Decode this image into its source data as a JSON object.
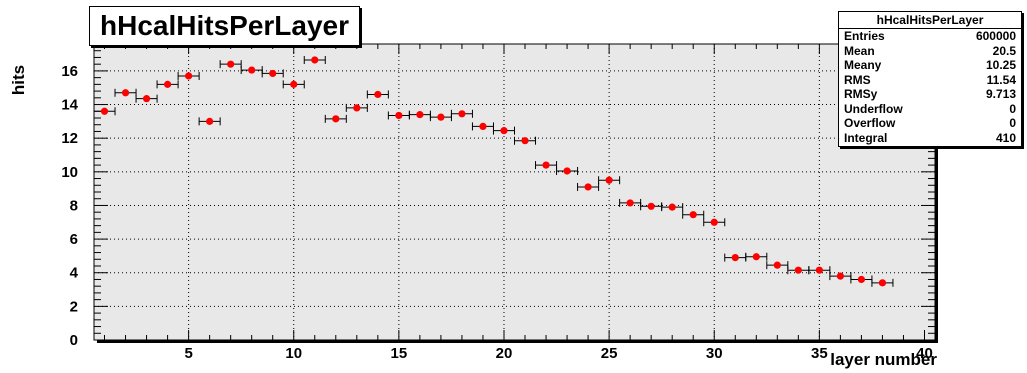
{
  "chart_data": {
    "type": "scatter",
    "title": "hHcalHitsPerLayer",
    "xlabel": "layer number",
    "ylabel": "hits",
    "xlim": [
      0.5,
      40.5
    ],
    "ylim": [
      0,
      17.6
    ],
    "x_ticks": [
      5,
      10,
      15,
      20,
      25,
      30,
      35,
      40
    ],
    "y_ticks": [
      0,
      2,
      4,
      6,
      8,
      10,
      12,
      14,
      16
    ],
    "grid": true,
    "series": [
      {
        "x": [
          1,
          2,
          3,
          4,
          5,
          6,
          7,
          8,
          9,
          10,
          11,
          12,
          13,
          14,
          15,
          16,
          17,
          18,
          19,
          20,
          21,
          22,
          23,
          24,
          25,
          26,
          27,
          28,
          29,
          30,
          31,
          32,
          33,
          34,
          35,
          36,
          37,
          38
        ],
        "values": [
          13.6,
          14.7,
          14.35,
          15.2,
          15.7,
          13.0,
          16.4,
          16.05,
          15.85,
          15.2,
          16.65,
          13.15,
          13.8,
          14.6,
          13.35,
          13.4,
          13.25,
          13.45,
          12.7,
          12.45,
          11.85,
          10.4,
          10.05,
          9.1,
          9.5,
          8.15,
          7.95,
          7.9,
          7.45,
          7.0,
          4.9,
          4.95,
          4.45,
          4.15,
          4.15,
          3.8,
          3.6,
          3.4
        ],
        "x_error": 0.5,
        "color": "#ff0000"
      }
    ]
  },
  "stats": {
    "title": "hHcalHitsPerLayer",
    "rows": [
      {
        "label": "Entries",
        "value": "600000"
      },
      {
        "label": "Mean",
        "value": "20.5"
      },
      {
        "label": "Meany",
        "value": "10.25"
      },
      {
        "label": "RMS",
        "value": "11.54"
      },
      {
        "label": "RMSy",
        "value": "9.713"
      },
      {
        "label": "Underflow",
        "value": "0"
      },
      {
        "label": "Overflow",
        "value": "0"
      },
      {
        "label": "Integral",
        "value": "410"
      }
    ]
  }
}
